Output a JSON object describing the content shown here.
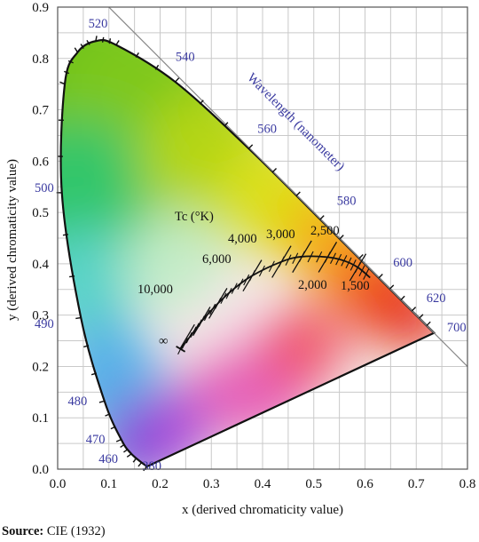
{
  "chart_data": {
    "type": "diagram",
    "title": "",
    "xlabel": "x (derived chromaticity value)",
    "ylabel": "y (derived chromaticity value)",
    "xlim": [
      0.0,
      0.8
    ],
    "ylim": [
      0.0,
      0.9
    ],
    "x_ticks": [
      "0.0",
      "0.1",
      "0.2",
      "0.3",
      "0.4",
      "0.5",
      "0.6",
      "0.7",
      "0.8"
    ],
    "y_ticks": [
      "0.0",
      "0.1",
      "0.2",
      "0.3",
      "0.4",
      "0.5",
      "0.6",
      "0.7",
      "0.8",
      "0.9"
    ],
    "grid": true,
    "annotation_wavelength": "Wavelength (nanometer)",
    "annotation_tc": "Tc (°K)",
    "spectral_locus": [
      {
        "nm": "380",
        "x": 0.1741,
        "y": 0.005
      },
      {
        "nm": "460",
        "x": 0.144,
        "y": 0.0297
      },
      {
        "nm": "470",
        "x": 0.1241,
        "y": 0.0578
      },
      {
        "nm": "480",
        "x": 0.0913,
        "y": 0.1327
      },
      {
        "nm": "490",
        "x": 0.0454,
        "y": 0.295
      },
      {
        "nm": "500",
        "x": 0.0082,
        "y": 0.5384
      },
      {
        "nm": "",
        "x": 0.0139,
        "y": 0.7502
      },
      {
        "nm": "",
        "x": 0.0389,
        "y": 0.812
      },
      {
        "nm": "520",
        "x": 0.0743,
        "y": 0.8338
      },
      {
        "nm": "",
        "x": 0.1142,
        "y": 0.8262
      },
      {
        "nm": "540",
        "x": 0.2296,
        "y": 0.7543
      },
      {
        "nm": "560",
        "x": 0.3731,
        "y": 0.6245
      },
      {
        "nm": "580",
        "x": 0.5125,
        "y": 0.4866
      },
      {
        "nm": "600",
        "x": 0.627,
        "y": 0.3725
      },
      {
        "nm": "620",
        "x": 0.6915,
        "y": 0.3083
      },
      {
        "nm": "700",
        "x": 0.7347,
        "y": 0.2653
      }
    ],
    "wavelength_labels": [
      "520",
      "540",
      "560",
      "580",
      "600",
      "620",
      "700",
      "500",
      "490",
      "480",
      "470",
      "460",
      "380"
    ],
    "planckian_locus": [
      {
        "x": 0.24,
        "y": 0.234
      },
      {
        "x": 0.265,
        "y": 0.267
      },
      {
        "x": 0.281,
        "y": 0.288
      },
      {
        "x": 0.313,
        "y": 0.323
      },
      {
        "x": 0.345,
        "y": 0.352
      },
      {
        "x": 0.38,
        "y": 0.377
      },
      {
        "x": 0.437,
        "y": 0.404
      },
      {
        "x": 0.477,
        "y": 0.414
      },
      {
        "x": 0.527,
        "y": 0.413
      },
      {
        "x": 0.559,
        "y": 0.406
      },
      {
        "x": 0.586,
        "y": 0.393
      },
      {
        "x": 0.61,
        "y": 0.373
      }
    ],
    "temperature_labels": [
      "10,000",
      "6,000",
      "4,000",
      "3,000",
      "2,500",
      "2,000",
      "1,500",
      "∞"
    ],
    "wavelength_annotation_line": {
      "from": [
        0.1,
        0.9
      ],
      "to": [
        0.8,
        0.2
      ]
    }
  },
  "source": {
    "prefix": "Source:",
    "text": " CIE (1932)"
  }
}
